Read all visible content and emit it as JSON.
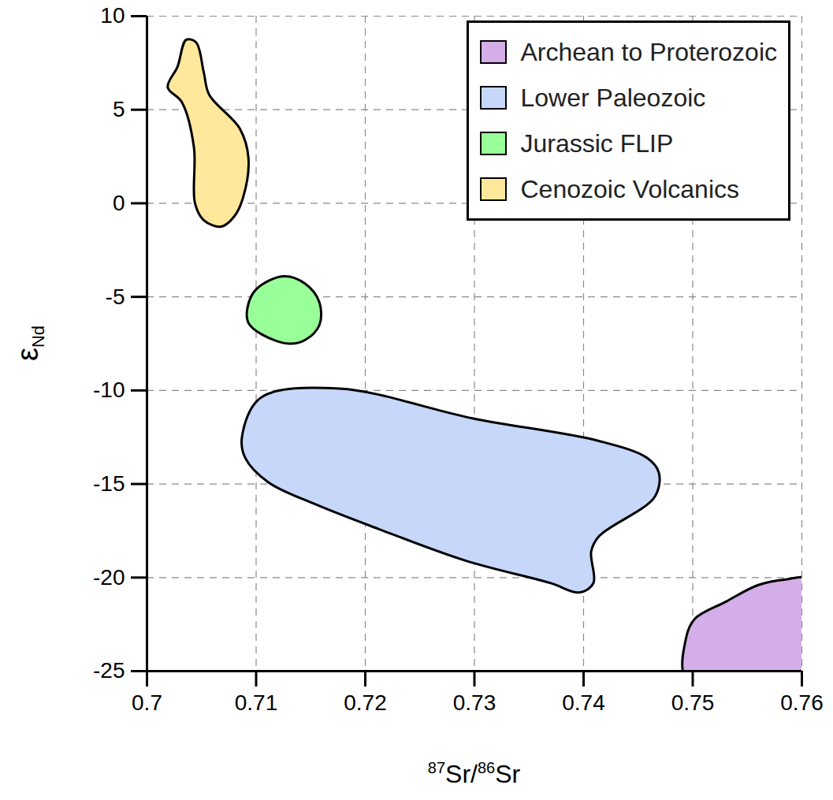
{
  "chart_data": {
    "type": "region",
    "xlabel": "87Sr/86Sr",
    "ylabel": "εNd",
    "xlim": [
      0.7,
      0.76
    ],
    "ylim": [
      -25,
      10
    ],
    "xticks": [
      0.7,
      0.71,
      0.72,
      0.73,
      0.74,
      0.75,
      0.76
    ],
    "yticks": [
      -25,
      -20,
      -15,
      -10,
      -5,
      0,
      5,
      10
    ],
    "grid": true,
    "legend": "top-right",
    "series": [
      {
        "name": "Archean to Proterozoic",
        "color": "#d4aee8",
        "values": [
          [
            0.7495,
            -25.5
          ],
          [
            0.7494,
            -23.2
          ],
          [
            0.7502,
            -22.2
          ],
          [
            0.753,
            -21.3
          ],
          [
            0.756,
            -20.4
          ],
          [
            0.7585,
            -20.1
          ],
          [
            0.7605,
            -20.1
          ],
          [
            0.7605,
            -25.5
          ]
        ]
      },
      {
        "name": "Lower Paleozoic",
        "color": "#c6d7fa",
        "values": [
          [
            0.7087,
            -12.5
          ],
          [
            0.7104,
            -10.4
          ],
          [
            0.7176,
            -9.9
          ],
          [
            0.7299,
            -11.5
          ],
          [
            0.7414,
            -12.7
          ],
          [
            0.7458,
            -13.6
          ],
          [
            0.7469,
            -14.4
          ],
          [
            0.7465,
            -15.7
          ],
          [
            0.7414,
            -17.8
          ],
          [
            0.7407,
            -18.6
          ],
          [
            0.7409,
            -20.3
          ],
          [
            0.7396,
            -20.8
          ],
          [
            0.737,
            -20.3
          ],
          [
            0.7292,
            -19.1
          ],
          [
            0.7212,
            -17.4
          ],
          [
            0.7155,
            -16.1
          ],
          [
            0.7111,
            -14.9
          ],
          [
            0.709,
            -13.6
          ]
        ]
      },
      {
        "name": "Jurassic FLIP",
        "color": "#99ff99",
        "values": [
          [
            0.7092,
            -5.6
          ],
          [
            0.71,
            -4.6
          ],
          [
            0.7125,
            -3.9
          ],
          [
            0.7145,
            -4.3
          ],
          [
            0.7158,
            -5.3
          ],
          [
            0.7158,
            -6.5
          ],
          [
            0.7145,
            -7.3
          ],
          [
            0.713,
            -7.5
          ],
          [
            0.7105,
            -7.0
          ],
          [
            0.7093,
            -6.4
          ]
        ]
      },
      {
        "name": "Cenozoic Volcanics",
        "color": "#ffe89c",
        "values": [
          [
            0.7036,
            8.74
          ],
          [
            0.7045,
            8.6
          ],
          [
            0.7052,
            7.0
          ],
          [
            0.7057,
            5.8
          ],
          [
            0.7085,
            4.0
          ],
          [
            0.7093,
            2.4
          ],
          [
            0.7088,
            0.3
          ],
          [
            0.708,
            -0.7
          ],
          [
            0.7068,
            -1.25
          ],
          [
            0.7052,
            -0.9
          ],
          [
            0.7044,
            0.0
          ],
          [
            0.7043,
            3.0
          ],
          [
            0.7032,
            5.4
          ],
          [
            0.7019,
            6.2
          ],
          [
            0.7028,
            7.3
          ]
        ]
      }
    ]
  }
}
